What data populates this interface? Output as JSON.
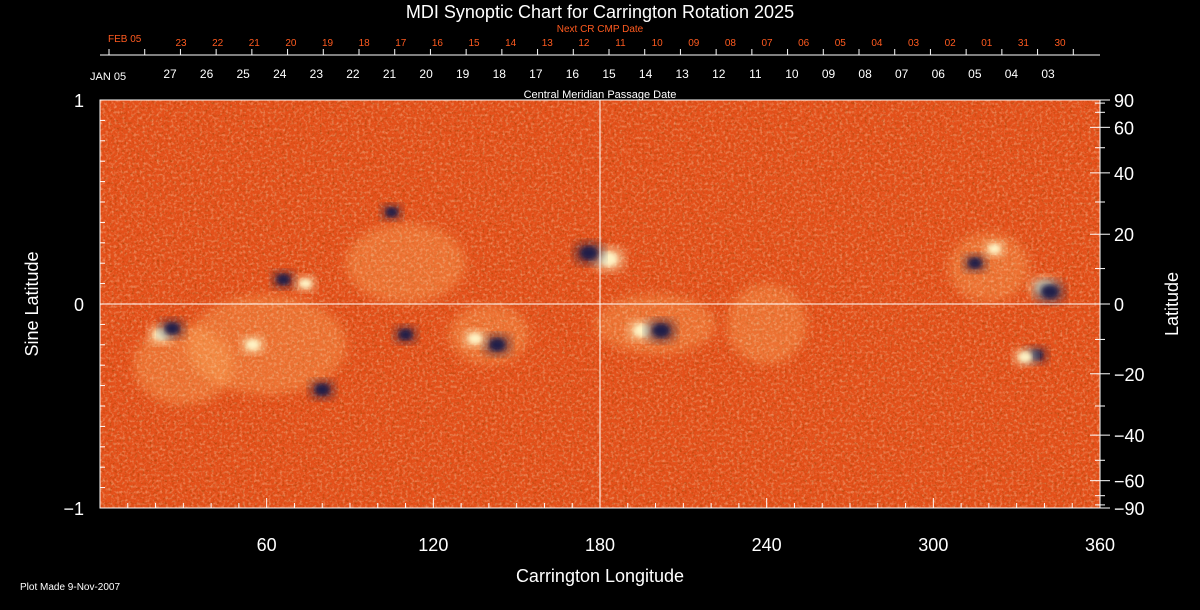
{
  "chart_data": {
    "type": "heatmap",
    "title": "MDI Synoptic Chart for Carrington Rotation 2025",
    "xlabel": "Carrington Longitude",
    "ylabel_left": "Sine Latitude",
    "ylabel_right": "Latitude",
    "xlim": [
      0,
      360
    ],
    "ylim": [
      -1,
      1
    ],
    "x_ticks": [
      60,
      120,
      180,
      240,
      300,
      360
    ],
    "y_ticks_left": [
      {
        "value": 1,
        "label": "1"
      },
      {
        "value": 0,
        "label": "0"
      },
      {
        "value": -1,
        "label": "−1"
      }
    ],
    "y_ticks_right": [
      90,
      60,
      40,
      20,
      0,
      -20,
      -40,
      -60,
      -90
    ],
    "y_ticks_right_labels": [
      "90",
      "60",
      "40",
      "20",
      "0",
      "−20",
      "−40",
      "−60",
      "−90"
    ],
    "top_axis_label": "Central Meridian Passage Date",
    "top_axis_start": "JAN 05",
    "top_axis_dates": [
      "27",
      "26",
      "25",
      "24",
      "23",
      "22",
      "21",
      "20",
      "19",
      "18",
      "17",
      "16",
      "15",
      "14",
      "13",
      "12",
      "11",
      "10",
      "09",
      "08",
      "07",
      "06",
      "05",
      "04",
      "03"
    ],
    "next_cr_label": "Next CR CMP Date",
    "next_cr_start": "FEB 05",
    "next_cr_dates": [
      "23",
      "22",
      "21",
      "20",
      "19",
      "18",
      "17",
      "16",
      "15",
      "14",
      "13",
      "12",
      "11",
      "10",
      "09",
      "08",
      "07",
      "06",
      "05",
      "04",
      "03",
      "02",
      "01",
      "31",
      "30"
    ],
    "colors": {
      "background_field": "#e8541a",
      "positive_polarity": "#fff6c8",
      "negative_polarity": "#1a1a4a",
      "axis": "#ffffff",
      "next_cr_text": "#ff5a1f"
    },
    "regions": [
      {
        "lon": 183,
        "sinlat": 0.22,
        "polarity": "positive",
        "strength": 1.0
      },
      {
        "lon": 176,
        "sinlat": 0.25,
        "polarity": "negative",
        "strength": 0.9
      },
      {
        "lon": 340,
        "sinlat": 0.08,
        "polarity": "positive",
        "strength": 0.9
      },
      {
        "lon": 342,
        "sinlat": 0.06,
        "polarity": "negative",
        "strength": 0.9
      },
      {
        "lon": 195,
        "sinlat": -0.13,
        "polarity": "positive",
        "strength": 0.8
      },
      {
        "lon": 202,
        "sinlat": -0.13,
        "polarity": "negative",
        "strength": 0.9
      },
      {
        "lon": 22,
        "sinlat": -0.15,
        "polarity": "positive",
        "strength": 0.7
      },
      {
        "lon": 26,
        "sinlat": -0.12,
        "polarity": "negative",
        "strength": 0.7
      },
      {
        "lon": 143,
        "sinlat": -0.2,
        "polarity": "negative",
        "strength": 0.8
      },
      {
        "lon": 135,
        "sinlat": -0.17,
        "polarity": "positive",
        "strength": 0.6
      },
      {
        "lon": 80,
        "sinlat": -0.42,
        "polarity": "negative",
        "strength": 0.7
      },
      {
        "lon": 110,
        "sinlat": -0.15,
        "polarity": "negative",
        "strength": 0.6
      },
      {
        "lon": 66,
        "sinlat": 0.12,
        "polarity": "negative",
        "strength": 0.6
      },
      {
        "lon": 74,
        "sinlat": 0.1,
        "polarity": "positive",
        "strength": 0.5
      },
      {
        "lon": 315,
        "sinlat": 0.2,
        "polarity": "negative",
        "strength": 0.6
      },
      {
        "lon": 322,
        "sinlat": 0.27,
        "polarity": "positive",
        "strength": 0.5
      },
      {
        "lon": 337,
        "sinlat": -0.25,
        "polarity": "negative",
        "strength": 0.6
      },
      {
        "lon": 333,
        "sinlat": -0.26,
        "polarity": "positive",
        "strength": 0.6
      },
      {
        "lon": 55,
        "sinlat": -0.2,
        "polarity": "positive",
        "strength": 0.6
      },
      {
        "lon": 105,
        "sinlat": 0.45,
        "polarity": "negative",
        "strength": 0.5
      }
    ]
  },
  "footer": {
    "plot_made": "Plot Made  9-Nov-2007"
  }
}
